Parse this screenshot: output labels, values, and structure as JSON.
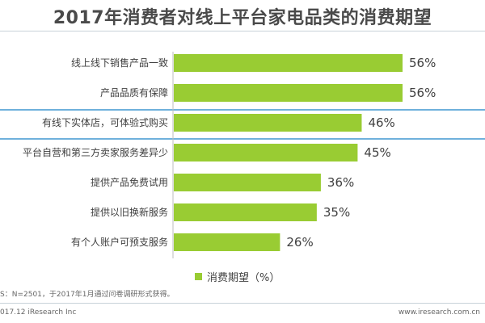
{
  "page": {
    "title": "2017年消费者对线上平台家电品类的消费期望",
    "source_note": "S：N=2501，于2017年1月通过问卷调研形式获得。",
    "copyright": "017.12 iResearch Inc",
    "website": "www.iresearch.com.cn"
  },
  "colors": {
    "bar": "#99cc33",
    "highlight_line": "#6fb1dc",
    "text": "#404040"
  },
  "chart_data": {
    "type": "bar",
    "orientation": "horizontal",
    "categories": [
      "线上线下销售产品一致",
      "产品品质有保障",
      "有线下实体店，可体验式购买",
      "平台自营和第三方卖家服务差异少",
      "提供产品免费试用",
      "提供以旧换新服务",
      "有个人账户可预支服务"
    ],
    "series": [
      {
        "name": "消费期望（%）",
        "values": [
          56,
          56,
          46,
          45,
          36,
          35,
          26
        ]
      }
    ],
    "value_labels": [
      "56%",
      "56%",
      "46%",
      "45%",
      "36%",
      "35%",
      "26%"
    ],
    "xlim": [
      0,
      56
    ],
    "grid": false,
    "legend": "bottom",
    "highlighted_category_index": 2
  }
}
